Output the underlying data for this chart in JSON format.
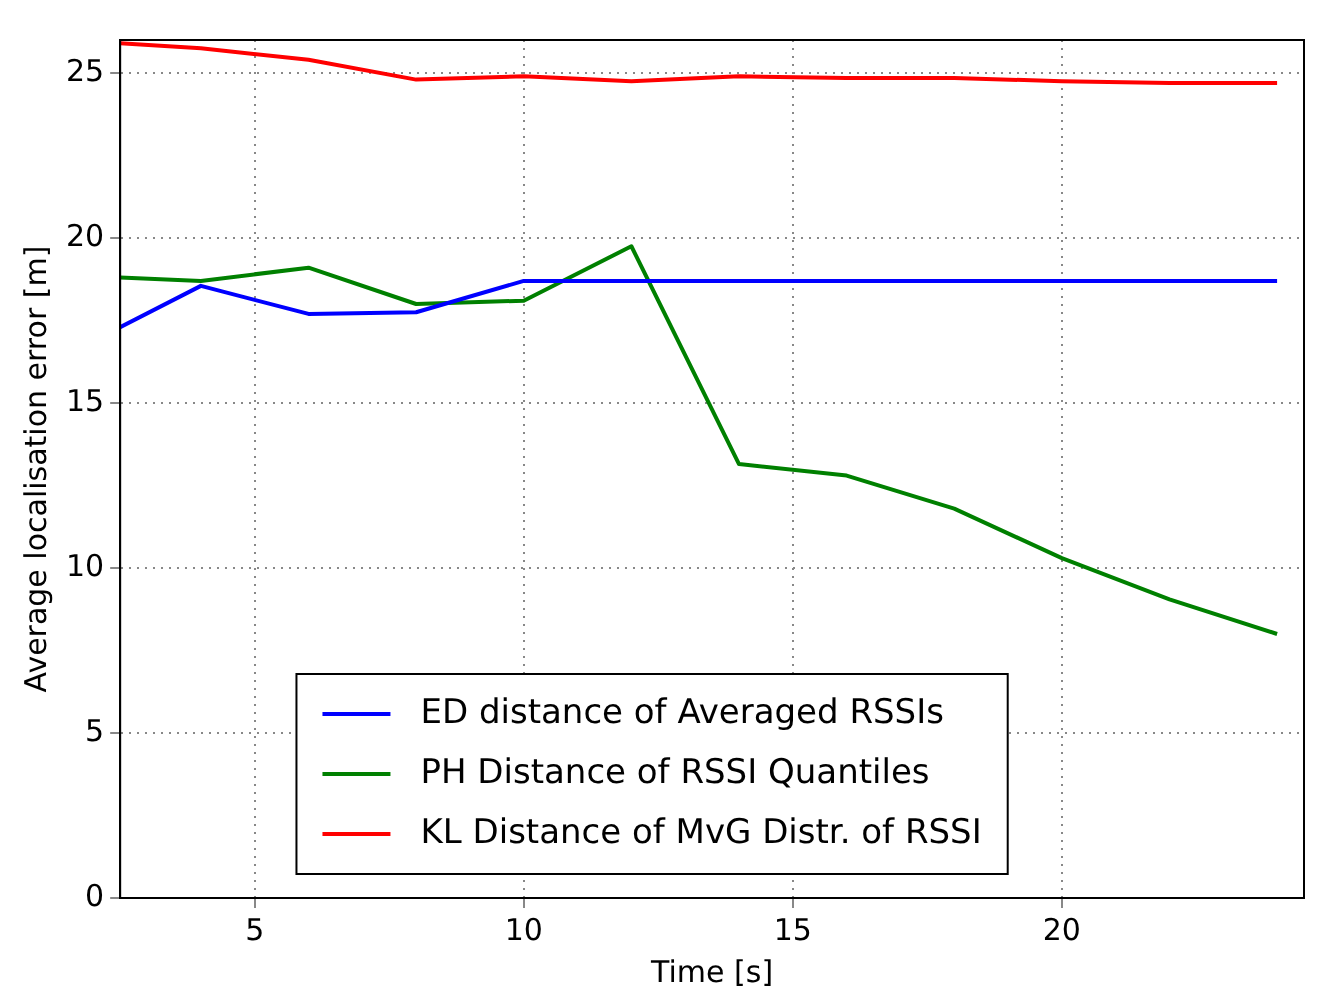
{
  "chart_data": {
    "type": "line",
    "xlabel": "Time [s]",
    "ylabel": "Average localisation error [m]",
    "xlim": [
      2.5,
      24.5
    ],
    "xticks": [
      5,
      10,
      15,
      20
    ],
    "ylim": [
      0,
      26
    ],
    "yticks": [
      0,
      5,
      10,
      15,
      20,
      25
    ],
    "x": [
      2.5,
      4,
      6,
      8,
      10,
      12,
      14,
      16,
      18,
      20,
      22,
      24
    ],
    "series": [
      {
        "name": "ED distance of Averaged RSSIs",
        "color": "#0000ff",
        "values": [
          17.3,
          18.55,
          17.7,
          17.75,
          18.7,
          18.7,
          18.7,
          18.7,
          18.7,
          18.7,
          18.7,
          18.7
        ]
      },
      {
        "name": "PH Distance of RSSI Quantiles",
        "color": "#008000",
        "values": [
          18.8,
          18.7,
          19.1,
          18.0,
          18.1,
          19.75,
          13.15,
          12.8,
          11.8,
          10.3,
          9.05,
          8.0
        ]
      },
      {
        "name": "KL Distance of MvG Distr. of RSSI",
        "color": "#ff0000",
        "values": [
          25.9,
          25.75,
          25.4,
          24.8,
          24.9,
          24.75,
          24.9,
          24.85,
          24.85,
          24.75,
          24.7,
          24.7
        ]
      }
    ],
    "grid": true,
    "legend": "bottom",
    "marker": "none",
    "line_style": "solid"
  }
}
